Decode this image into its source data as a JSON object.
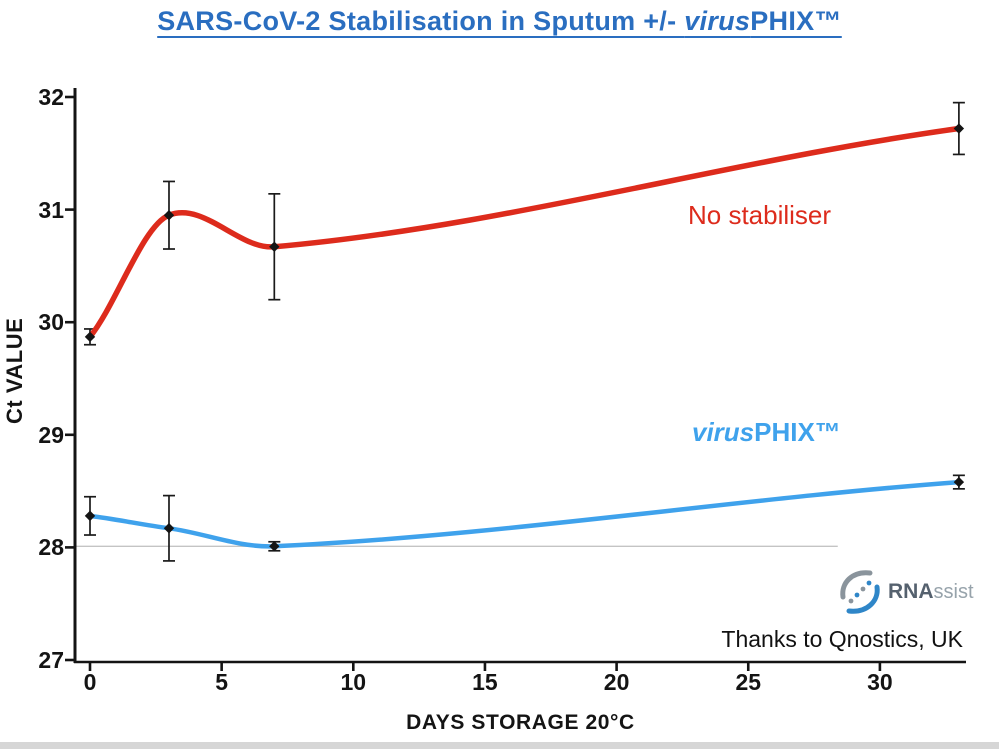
{
  "title": {
    "prefix": "SARS-CoV-2 Stabilisation in Sputum +/- ",
    "italic_part": "virus",
    "suffix": "PHIX™"
  },
  "colors": {
    "title_blue": "#2a6ec0",
    "no_stabiliser_red": "#dd2b1c",
    "virusphix_blue": "#3fa2ec",
    "axis_black": "#141414",
    "error_bar": "#1a1a1a",
    "reference_line_gray": "#c4c4c4",
    "logo_dark": "#55616e",
    "logo_light": "#97a3ab",
    "bottom_strip": "#d6d6d6"
  },
  "axes": {
    "y_label": "Ct VALUE",
    "x_label": "DAYS STORAGE 20°C"
  },
  "annotations": {
    "no_stabiliser": "No stabiliser",
    "virusphix_italic": "virus",
    "virusphix_rest": "PHIX™",
    "credit": "Thanks to Qnostics, UK"
  },
  "logo": {
    "bold_text": "RNA",
    "light_text": "ssist"
  },
  "chart_data": {
    "type": "line",
    "title": "SARS-CoV-2 Stabilisation in Sputum +/- virusPHIX™",
    "x": [
      0,
      3,
      7,
      33
    ],
    "x_ticks": [
      0,
      5,
      10,
      15,
      20,
      25,
      30
    ],
    "y_ticks": [
      27,
      28,
      29,
      30,
      31,
      32
    ],
    "xlim": [
      0,
      33.5
    ],
    "ylim": [
      27,
      32
    ],
    "xlabel": "DAYS STORAGE 20°C",
    "ylabel": "Ct VALUE",
    "grid": false,
    "legend": "inline-annotations",
    "error_bars": true,
    "series": [
      {
        "name": "No stabiliser",
        "color": "#dd2b1c",
        "values": [
          29.87,
          30.95,
          30.67,
          31.72
        ],
        "errors": [
          0.07,
          0.3,
          0.47,
          0.23
        ]
      },
      {
        "name": "virusPHIX™",
        "color": "#3fa2ec",
        "values": [
          28.28,
          28.17,
          28.01,
          28.58
        ],
        "errors": [
          0.17,
          0.29,
          0.04,
          0.06
        ]
      }
    ],
    "reference_line": {
      "y": 28.01,
      "x_start": -0.55,
      "x_end": 28.4
    }
  }
}
